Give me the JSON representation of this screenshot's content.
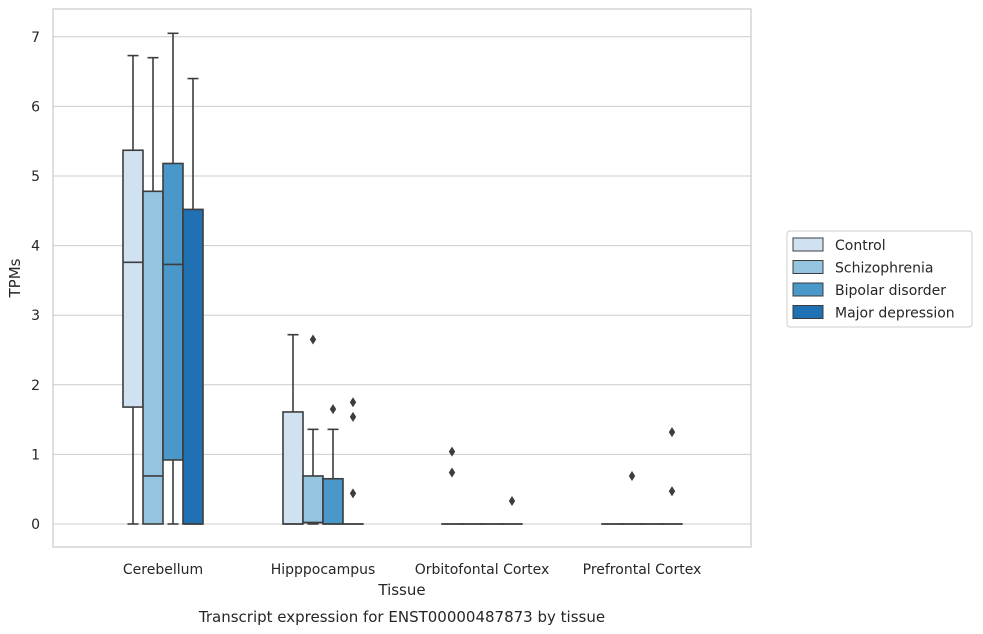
{
  "chart_data": {
    "type": "box",
    "title": "",
    "caption": "Transcript expression for ENST00000487873 by tissue",
    "xlabel": "Tissue",
    "ylabel": "TPMs",
    "ylim": [
      -0.35,
      7.4
    ],
    "yticks": [
      0,
      1,
      2,
      3,
      4,
      5,
      6,
      7
    ],
    "grid": "horizontal",
    "legend_position": "right",
    "categories": [
      "Cerebellum",
      "Hipppocampus",
      "Orbitofontal Cortex",
      "Prefrontal Cortex"
    ],
    "series": [
      {
        "name": "Control",
        "color": "#d0e1f2",
        "boxes": [
          {
            "whisker_low": 0,
            "q1": 1.68,
            "median": 3.76,
            "q3": 5.37,
            "whisker_high": 6.73,
            "outliers": []
          },
          {
            "whisker_low": 0,
            "q1": 0,
            "median": 0,
            "q3": 1.61,
            "whisker_high": 2.72,
            "outliers": []
          },
          {
            "whisker_low": 0,
            "q1": 0,
            "median": 0,
            "q3": 0,
            "whisker_high": 0,
            "outliers": [
              1.04,
              0.74
            ]
          },
          {
            "whisker_low": 0,
            "q1": 0,
            "median": 0,
            "q3": 0,
            "whisker_high": 0,
            "outliers": []
          }
        ]
      },
      {
        "name": "Schizophrenia",
        "color": "#94c4df",
        "boxes": [
          {
            "whisker_low": 0,
            "q1": 0,
            "median": 0.69,
            "q3": 4.78,
            "whisker_high": 6.7,
            "outliers": []
          },
          {
            "whisker_low": 0,
            "q1": 0.02,
            "median": 0.02,
            "q3": 0.69,
            "whisker_high": 1.36,
            "outliers": [
              2.65
            ]
          },
          {
            "whisker_low": 0,
            "q1": 0,
            "median": 0,
            "q3": 0,
            "whisker_high": 0,
            "outliers": []
          },
          {
            "whisker_low": 0,
            "q1": 0,
            "median": 0,
            "q3": 0,
            "whisker_high": 0,
            "outliers": [
              0.69
            ]
          }
        ]
      },
      {
        "name": "Bipolar disorder",
        "color": "#4a98c9",
        "boxes": [
          {
            "whisker_low": 0,
            "q1": 0.92,
            "median": 3.73,
            "q3": 5.18,
            "whisker_high": 7.05,
            "outliers": []
          },
          {
            "whisker_low": 0,
            "q1": 0,
            "median": 0,
            "q3": 0.65,
            "whisker_high": 1.36,
            "outliers": [
              1.65
            ]
          },
          {
            "whisker_low": 0,
            "q1": 0,
            "median": 0,
            "q3": 0,
            "whisker_high": 0,
            "outliers": []
          },
          {
            "whisker_low": 0,
            "q1": 0,
            "median": 0,
            "q3": 0,
            "whisker_high": 0,
            "outliers": []
          }
        ]
      },
      {
        "name": "Major depression",
        "color": "#2070b4",
        "boxes": [
          {
            "whisker_low": 0,
            "q1": 0,
            "median": 0,
            "q3": 4.52,
            "whisker_high": 6.4,
            "outliers": []
          },
          {
            "whisker_low": 0,
            "q1": 0,
            "median": 0,
            "q3": 0,
            "whisker_high": 0,
            "outliers": [
              1.75,
              1.54,
              0.44
            ]
          },
          {
            "whisker_low": 0,
            "q1": 0,
            "median": 0,
            "q3": 0,
            "whisker_high": 0,
            "outliers": [
              0.33
            ]
          },
          {
            "whisker_low": 0,
            "q1": 0,
            "median": 0,
            "q3": 0,
            "whisker_high": 0,
            "outliers": [
              1.32,
              0.47
            ]
          }
        ]
      }
    ]
  }
}
